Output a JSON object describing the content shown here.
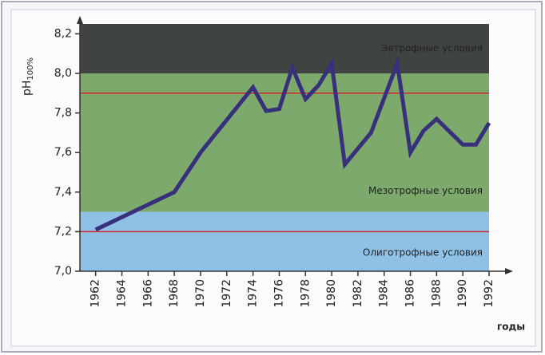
{
  "chart_data": {
    "type": "line",
    "ylabel": "pH",
    "ylabel_sub": "100%",
    "xlabel": "годы",
    "x": [
      1962,
      1968,
      1970,
      1974,
      1975,
      1976,
      1977,
      1978,
      1979,
      1980,
      1981,
      1983,
      1985,
      1986,
      1987,
      1988,
      1990,
      1991,
      1992
    ],
    "series": [
      {
        "color": "#38307a",
        "values": [
          7.21,
          7.4,
          7.6,
          7.93,
          7.81,
          7.82,
          8.03,
          7.87,
          7.94,
          8.05,
          7.54,
          7.7,
          8.05,
          7.6,
          7.71,
          7.77,
          7.64,
          7.64,
          7.75
        ]
      }
    ],
    "zones": [
      {
        "name": "Эвтрофные условия",
        "from": 8.0,
        "to": 8.25,
        "color": "#3f4441"
      },
      {
        "name": "Мезотрофные условия",
        "from": 7.3,
        "to": 8.0,
        "color": "#7daa6c"
      },
      {
        "name": "Олиготрофные условия",
        "from": 7.0,
        "to": 7.3,
        "color": "#8fc1e6"
      }
    ],
    "hlines": [
      {
        "value": 7.9,
        "color": "#d7242a"
      },
      {
        "value": 7.2,
        "color": "#d7242a"
      }
    ],
    "xlim": [
      1960.8,
      1992
    ],
    "ylim": [
      7.0,
      8.25
    ],
    "xticks": [
      1962,
      1964,
      1966,
      1968,
      1970,
      1972,
      1974,
      1976,
      1978,
      1980,
      1982,
      1984,
      1986,
      1988,
      1990,
      1992
    ],
    "yticks": [
      {
        "value": 7.0,
        "label": "7,0"
      },
      {
        "value": 7.2,
        "label": "7,2"
      },
      {
        "value": 7.4,
        "label": "7,4"
      },
      {
        "value": 7.6,
        "label": "7,6"
      },
      {
        "value": 7.8,
        "label": "7,8"
      },
      {
        "value": 8.0,
        "label": "8,0"
      },
      {
        "value": 8.2,
        "label": "8,2"
      }
    ]
  }
}
